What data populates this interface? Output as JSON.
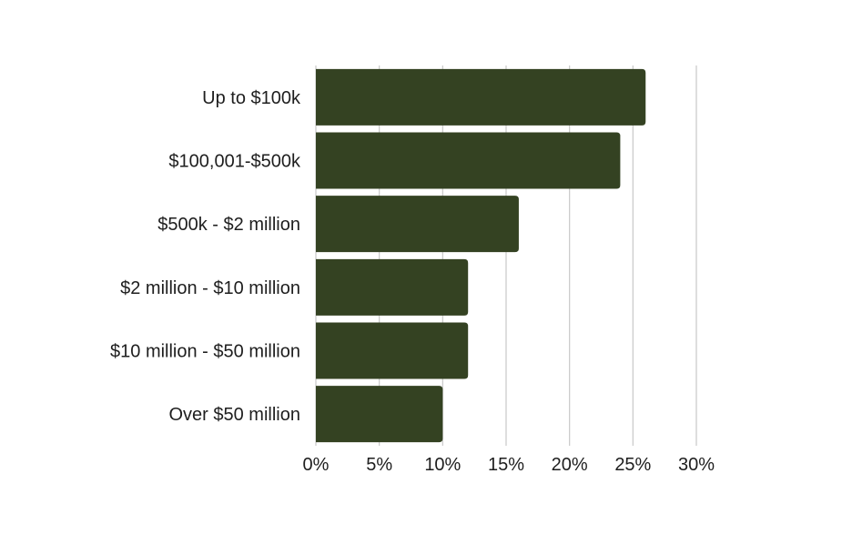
{
  "colors": {
    "bar": "#344222",
    "grid": "#c8c8c8",
    "text": "#1e1e1e",
    "background": "#ffffff"
  },
  "chart_data": {
    "type": "bar",
    "orientation": "horizontal",
    "title": "",
    "xlabel": "",
    "ylabel": "",
    "categories": [
      "Up to $100k",
      "$100,001-$500k",
      "$500k - $2 million",
      "$2 million - $10 million",
      "$10 million - $50 million",
      "Over $50 million"
    ],
    "values": [
      26,
      24,
      16,
      12,
      12,
      10
    ],
    "value_unit": "%",
    "xlim": [
      0,
      30
    ],
    "xticks": [
      0,
      5,
      10,
      15,
      20,
      25,
      30
    ],
    "xtick_labels": [
      "0%",
      "5%",
      "10%",
      "15%",
      "20%",
      "25%",
      "30%"
    ],
    "grid": "vertical",
    "legend": "none"
  }
}
